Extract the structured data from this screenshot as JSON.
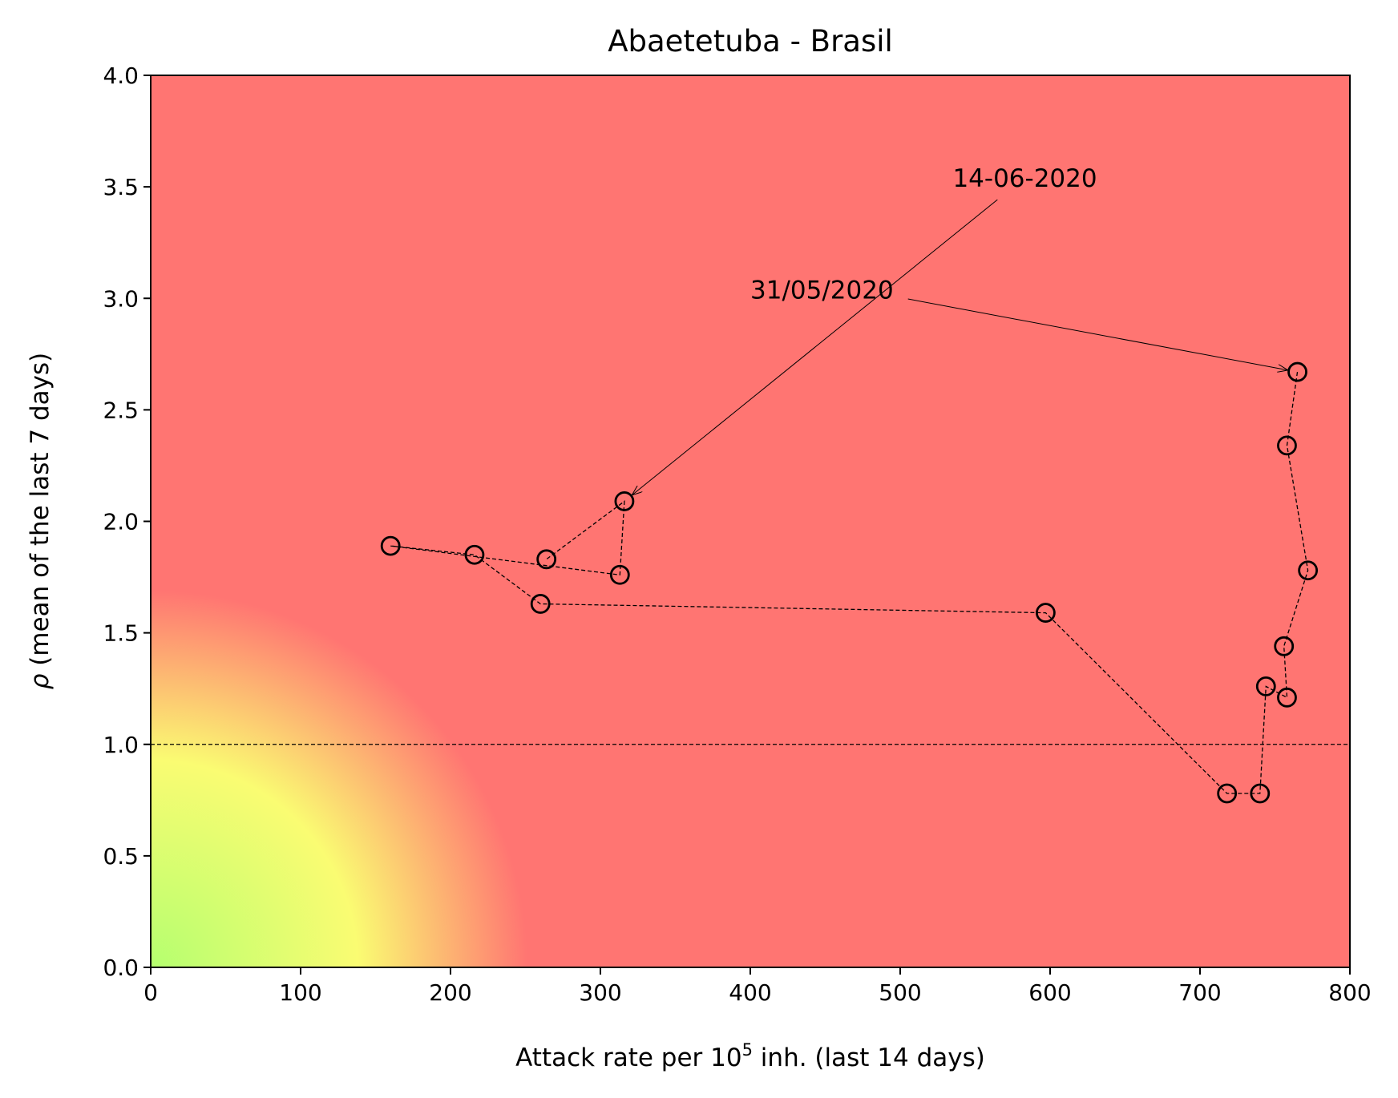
{
  "chart_data": {
    "type": "scatter",
    "title": "Abaetetuba - Brasil",
    "xlabel_prefix": "Attack rate per 10",
    "xlabel_sup": "5",
    "xlabel_suffix": " inh. (last 14 days)",
    "ylabel_symbol": "ρ",
    "ylabel_text": " (mean of the last 7 days)",
    "xlim": [
      0,
      800
    ],
    "ylim": [
      0,
      4
    ],
    "xticks": [
      0,
      100,
      200,
      300,
      400,
      500,
      600,
      700,
      800
    ],
    "yticks": [
      0.0,
      0.5,
      1.0,
      1.5,
      2.0,
      2.5,
      3.0,
      3.5,
      4.0
    ],
    "xtick_labels": [
      "0",
      "100",
      "200",
      "300",
      "400",
      "500",
      "600",
      "700",
      "800"
    ],
    "ytick_labels": [
      "0.0",
      "0.5",
      "1.0",
      "1.5",
      "2.0",
      "2.5",
      "3.0",
      "3.5",
      "4.0"
    ],
    "reference_line_y": 1.0,
    "background": {
      "type": "radial-gradient",
      "stops": [
        {
          "color": "#b5ff6f",
          "position": 0.0
        },
        {
          "color": "#fafc72",
          "position": 0.55
        },
        {
          "color": "#ff7572",
          "position": 1.0
        }
      ],
      "base_color": "#ff7572"
    },
    "series": [
      {
        "marker": "open-circle",
        "line": "dashed",
        "x": [
          765,
          758,
          772,
          756,
          758,
          744,
          740,
          718,
          597,
          260,
          216,
          160,
          313,
          316,
          264
        ],
        "y": [
          2.67,
          2.34,
          1.78,
          1.44,
          1.21,
          1.26,
          0.78,
          0.78,
          1.59,
          1.63,
          1.85,
          1.89,
          1.76,
          2.09,
          1.83
        ]
      }
    ],
    "annotations": [
      {
        "text": "31/05/2020",
        "point_index": 0,
        "label_x": 400,
        "label_y": 3.0
      },
      {
        "text": "14-06-2020",
        "point_index": 13,
        "label_x": 535,
        "label_y": 3.5
      }
    ]
  }
}
